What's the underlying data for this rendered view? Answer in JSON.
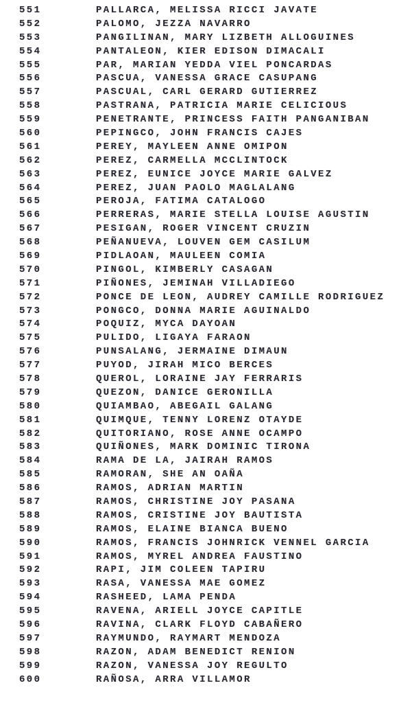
{
  "document": {
    "kind": "numbered-name-list",
    "range_start": 551,
    "range_end": 600,
    "text_color": "#282830",
    "background_color": "#ffffff"
  },
  "rows": [
    {
      "number": "551",
      "name": "PALLARCA, MELISSA RICCI JAVATE"
    },
    {
      "number": "552",
      "name": "PALOMO, JEZZA NAVARRO"
    },
    {
      "number": "553",
      "name": "PANGILINAN, MARY LIZBETH ALLOGUINES"
    },
    {
      "number": "554",
      "name": "PANTALEON, KIER EDISON DIMACALI"
    },
    {
      "number": "555",
      "name": "PAR, MARIAN YEDDA VIEL PONCARDAS"
    },
    {
      "number": "556",
      "name": "PASCUA, VANESSA GRACE CASUPANG"
    },
    {
      "number": "557",
      "name": "PASCUAL, CARL GERARD GUTIERREZ"
    },
    {
      "number": "558",
      "name": "PASTRANA, PATRICIA MARIE CELICIOUS"
    },
    {
      "number": "559",
      "name": "PENETRANTE, PRINCESS FAITH PANGANIBAN"
    },
    {
      "number": "560",
      "name": "PEPINGCO, JOHN FRANCIS CAJES"
    },
    {
      "number": "561",
      "name": "PEREY, MAYLEEN ANNE OMIPON"
    },
    {
      "number": "562",
      "name": "PEREZ, CARMELLA MCCLINTOCK"
    },
    {
      "number": "563",
      "name": "PEREZ, EUNICE JOYCE MARIE GALVEZ"
    },
    {
      "number": "564",
      "name": "PEREZ, JUAN PAOLO MAGLALANG"
    },
    {
      "number": "565",
      "name": "PEROJA, FATIMA CATALOGO"
    },
    {
      "number": "566",
      "name": "PERRERAS, MARIE STELLA LOUISE AGUSTIN"
    },
    {
      "number": "567",
      "name": "PESIGAN, ROGER VINCENT CRUZIN"
    },
    {
      "number": "568",
      "name": "PEÑANUEVA, LOUVEN GEM CASILUM"
    },
    {
      "number": "569",
      "name": "PIDLAOAN, MAULEEN COMIA"
    },
    {
      "number": "570",
      "name": "PINGOL, KIMBERLY CASAGAN"
    },
    {
      "number": "571",
      "name": "PIÑONES, JEMINAH VILLADIEGO"
    },
    {
      "number": "572",
      "name": "PONCE DE LEON, AUDREY CAMILLE RODRIGUEZ"
    },
    {
      "number": "573",
      "name": "PONGCO, DONNA MARIE AGUINALDO"
    },
    {
      "number": "574",
      "name": "POQUIZ, MYCA DAYOAN"
    },
    {
      "number": "575",
      "name": "PULIDO, LIGAYA FARAON"
    },
    {
      "number": "576",
      "name": "PUNSALANG, JERMAINE DIMAUN"
    },
    {
      "number": "577",
      "name": "PUYOD, JIRAH MICO BERCES"
    },
    {
      "number": "578",
      "name": "QUEROL, LORAINE JAY FERRARIS"
    },
    {
      "number": "579",
      "name": "QUEZON, DANICE GERONILLA"
    },
    {
      "number": "580",
      "name": "QUIAMBAO, ABEGAIL GALANG"
    },
    {
      "number": "581",
      "name": "QUIMQUE, TENNY LORENZ OTAYDE"
    },
    {
      "number": "582",
      "name": "QUITORIANO, ROSE ANNE OCAMPO"
    },
    {
      "number": "583",
      "name": "QUIÑONES, MARK DOMINIC TIRONA"
    },
    {
      "number": "584",
      "name": "RAMA DE LA, JAIRAH RAMOS"
    },
    {
      "number": "585",
      "name": "RAMORAN, SHE AN OAÑA"
    },
    {
      "number": "586",
      "name": "RAMOS, ADRIAN MARTIN"
    },
    {
      "number": "587",
      "name": "RAMOS, CHRISTINE JOY PASANA"
    },
    {
      "number": "588",
      "name": "RAMOS, CRISTINE JOY BAUTISTA"
    },
    {
      "number": "589",
      "name": "RAMOS, ELAINE BIANCA BUENO"
    },
    {
      "number": "590",
      "name": "RAMOS, FRANCIS JOHNRICK VENNEL GARCIA"
    },
    {
      "number": "591",
      "name": "RAMOS, MYREL ANDREA FAUSTINO"
    },
    {
      "number": "592",
      "name": "RAPI, JIM COLEEN TAPIRU"
    },
    {
      "number": "593",
      "name": "RASA, VANESSA MAE GOMEZ"
    },
    {
      "number": "594",
      "name": "RASHEED, LAMA PENDA"
    },
    {
      "number": "595",
      "name": "RAVENA, ARIELL JOYCE CAPITLE"
    },
    {
      "number": "596",
      "name": "RAVINA, CLARK FLOYD CABAÑERO"
    },
    {
      "number": "597",
      "name": "RAYMUNDO, RAYMART MENDOZA"
    },
    {
      "number": "598",
      "name": "RAZON, ADAM BENEDICT RENION"
    },
    {
      "number": "599",
      "name": "RAZON, VANESSA JOY REGULTO"
    },
    {
      "number": "600",
      "name": "RAÑOSA, ARRA VILLAMOR"
    }
  ]
}
